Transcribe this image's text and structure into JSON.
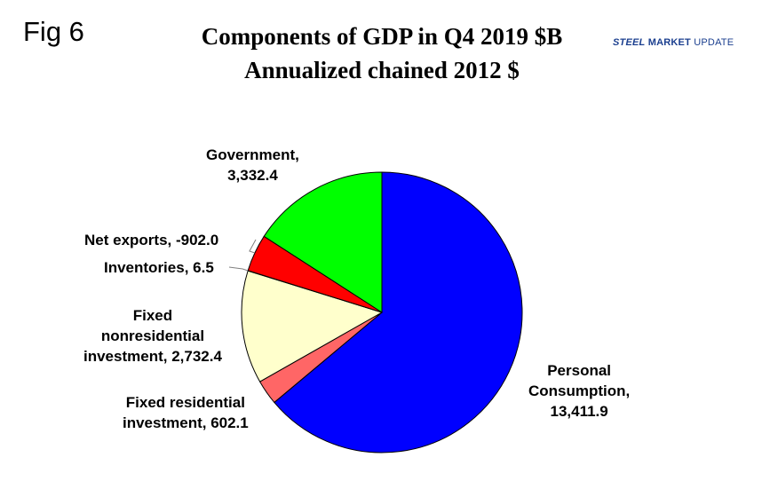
{
  "figure": {
    "label": "Fig 6"
  },
  "title_line1": "Components of GDP in Q4 2019 $B",
  "title_line2": "Annualized chained 2012 $",
  "logo": {
    "part1": "STEEL",
    "part2": "MARKET",
    "part3": "UPDATE"
  },
  "chart_data": {
    "type": "pie",
    "title": "Components of GDP in Q4 2019 $B",
    "subtitle": "Annualized chained 2012 $",
    "start_angle_deg": 0,
    "direction": "clockwise",
    "slices": [
      {
        "name": "Personal Consumption",
        "value": 13411.9,
        "value_label": "13,411.9",
        "color": "#0000ff"
      },
      {
        "name": "Fixed residential investment",
        "value": 602.1,
        "value_label": "602.1",
        "color": "#ff6666"
      },
      {
        "name": "Fixed nonresidential investment",
        "value": 2732.4,
        "value_label": "2,732.4",
        "color": "#ffffcc"
      },
      {
        "name": "Inventories",
        "value": 6.5,
        "value_label": "6.5",
        "color": "#c0c0c0"
      },
      {
        "name": "Net exports",
        "value": -902.0,
        "value_label": "-902.0",
        "color": "#ff0000"
      },
      {
        "name": "Government",
        "value": 3332.4,
        "value_label": "3,332.4",
        "color": "#00ff00"
      }
    ]
  },
  "labels": {
    "personal_1": "Personal",
    "personal_2": "Consumption,",
    "personal_3": "13,411.9",
    "resid_1": "Fixed residential",
    "resid_2": "investment, 602.1",
    "nonres_1": "Fixed",
    "nonres_2": "nonresidential",
    "nonres_3": "investment, 2,732.4",
    "inventories": "Inventories, 6.5",
    "net_exports": "Net exports, -902.0",
    "gov_1": "Government,",
    "gov_2": "3,332.4"
  }
}
